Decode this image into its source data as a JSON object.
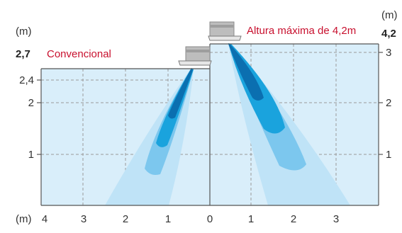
{
  "colors": {
    "background": "#d9eefa",
    "grid": "#9a9a9a",
    "axis": "#555555",
    "accent": "#c8102e",
    "plume_outer": "#bfe3f7",
    "plume_mid": "#7cc7ee",
    "plume_inner": "#1aa3dd",
    "plume_core": "#0b6fb0",
    "unit_body": "#bdbdbd"
  },
  "icons": {
    "unit": "ceiling-cassette-icon"
  },
  "left_panel": {
    "unit_label": "(m)",
    "ceiling_height": "2,7",
    "label": "Convencional",
    "y_ticks": [
      "2,4",
      "2",
      "1"
    ],
    "x_ticks": [
      "4",
      "3",
      "2",
      "1",
      "0"
    ]
  },
  "right_panel": {
    "unit_label": "(m)",
    "ceiling_height": "4,2",
    "label": "Altura máxima de 4,2m",
    "y_ticks": [
      "3",
      "2",
      "1"
    ],
    "x_ticks": [
      "1",
      "2",
      "3"
    ]
  },
  "x_unit_label": "(m)"
}
